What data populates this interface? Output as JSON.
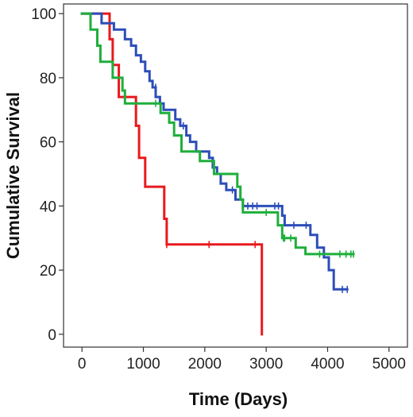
{
  "chart_data": {
    "type": "line",
    "subtype": "kaplan-meier-step",
    "title": "",
    "xlabel": "Time (Days)",
    "ylabel": "Cumulative Survival",
    "xlim": [
      -300,
      5300
    ],
    "ylim": [
      -4,
      103
    ],
    "xticks": [
      0,
      1000,
      2000,
      3000,
      4000,
      5000
    ],
    "yticks": [
      0,
      20,
      40,
      60,
      80,
      100
    ],
    "xtick_labels": [
      "0",
      "1000",
      "2000",
      "3000",
      "4000",
      "5000"
    ],
    "ytick_labels": [
      "0",
      "20",
      "40",
      "60",
      "80",
      "100"
    ],
    "grid": false,
    "legend": "none",
    "series": [
      {
        "color": "#e8191d",
        "points": [
          [
            0,
            100
          ],
          [
            450,
            100
          ],
          [
            450,
            92
          ],
          [
            500,
            92
          ],
          [
            500,
            84
          ],
          [
            600,
            84
          ],
          [
            600,
            74
          ],
          [
            880,
            74
          ],
          [
            880,
            65
          ],
          [
            930,
            65
          ],
          [
            930,
            55
          ],
          [
            1030,
            55
          ],
          [
            1030,
            46
          ],
          [
            1340,
            46
          ],
          [
            1340,
            36
          ],
          [
            1380,
            36
          ],
          [
            1380,
            28
          ],
          [
            2930,
            28
          ],
          [
            2930,
            0
          ]
        ],
        "censored": [
          [
            1380,
            28
          ],
          [
            2070,
            28
          ],
          [
            2820,
            28
          ]
        ]
      },
      {
        "color": "#2c4eb8",
        "points": [
          [
            0,
            100
          ],
          [
            320,
            100
          ],
          [
            320,
            97
          ],
          [
            520,
            97
          ],
          [
            520,
            95
          ],
          [
            700,
            95
          ],
          [
            700,
            92
          ],
          [
            800,
            92
          ],
          [
            800,
            90
          ],
          [
            880,
            90
          ],
          [
            880,
            87
          ],
          [
            960,
            87
          ],
          [
            960,
            85
          ],
          [
            1030,
            85
          ],
          [
            1030,
            82
          ],
          [
            1100,
            82
          ],
          [
            1100,
            79
          ],
          [
            1150,
            79
          ],
          [
            1150,
            77
          ],
          [
            1200,
            77
          ],
          [
            1200,
            74
          ],
          [
            1270,
            74
          ],
          [
            1270,
            72
          ],
          [
            1330,
            72
          ],
          [
            1330,
            70
          ],
          [
            1520,
            70
          ],
          [
            1520,
            67
          ],
          [
            1600,
            67
          ],
          [
            1600,
            65
          ],
          [
            1700,
            65
          ],
          [
            1700,
            62
          ],
          [
            1760,
            62
          ],
          [
            1760,
            60
          ],
          [
            1860,
            60
          ],
          [
            1860,
            57
          ],
          [
            2070,
            57
          ],
          [
            2070,
            55
          ],
          [
            2130,
            55
          ],
          [
            2130,
            52
          ],
          [
            2200,
            52
          ],
          [
            2200,
            50
          ],
          [
            2260,
            50
          ],
          [
            2260,
            47
          ],
          [
            2350,
            47
          ],
          [
            2350,
            45
          ],
          [
            2500,
            45
          ],
          [
            2500,
            42
          ],
          [
            2620,
            42
          ],
          [
            2620,
            40
          ],
          [
            3260,
            40
          ],
          [
            3260,
            37
          ],
          [
            3300,
            37
          ],
          [
            3300,
            34
          ],
          [
            3720,
            34
          ],
          [
            3720,
            31
          ],
          [
            3830,
            31
          ],
          [
            3830,
            27
          ],
          [
            3940,
            27
          ],
          [
            3940,
            24
          ],
          [
            4020,
            24
          ],
          [
            4020,
            20
          ],
          [
            4100,
            20
          ],
          [
            4100,
            14
          ],
          [
            4320,
            14
          ]
        ],
        "censored": [
          [
            1200,
            77
          ],
          [
            1650,
            65
          ],
          [
            2450,
            45
          ],
          [
            2700,
            40
          ],
          [
            2780,
            40
          ],
          [
            2850,
            40
          ],
          [
            3140,
            40
          ],
          [
            3200,
            40
          ],
          [
            3450,
            34
          ],
          [
            3650,
            34
          ],
          [
            4240,
            14
          ],
          [
            4320,
            14
          ]
        ]
      },
      {
        "color": "#1eaf3b",
        "points": [
          [
            0,
            100
          ],
          [
            140,
            100
          ],
          [
            140,
            95
          ],
          [
            250,
            95
          ],
          [
            250,
            90
          ],
          [
            300,
            90
          ],
          [
            300,
            85
          ],
          [
            500,
            85
          ],
          [
            500,
            80
          ],
          [
            660,
            80
          ],
          [
            660,
            76
          ],
          [
            700,
            76
          ],
          [
            700,
            72
          ],
          [
            1280,
            72
          ],
          [
            1280,
            69
          ],
          [
            1420,
            69
          ],
          [
            1420,
            66
          ],
          [
            1500,
            66
          ],
          [
            1500,
            62
          ],
          [
            1620,
            62
          ],
          [
            1620,
            57
          ],
          [
            1920,
            57
          ],
          [
            1920,
            54
          ],
          [
            2150,
            54
          ],
          [
            2150,
            50
          ],
          [
            2530,
            50
          ],
          [
            2530,
            46
          ],
          [
            2580,
            46
          ],
          [
            2580,
            42
          ],
          [
            2620,
            42
          ],
          [
            2620,
            38
          ],
          [
            3190,
            38
          ],
          [
            3190,
            34
          ],
          [
            3260,
            34
          ],
          [
            3260,
            30
          ],
          [
            3480,
            30
          ],
          [
            3480,
            27
          ],
          [
            3640,
            27
          ],
          [
            3640,
            25
          ],
          [
            4420,
            25
          ]
        ],
        "censored": [
          [
            1200,
            72
          ],
          [
            3000,
            38
          ],
          [
            3280,
            30
          ],
          [
            3300,
            30
          ],
          [
            3400,
            30
          ],
          [
            3870,
            25
          ],
          [
            4200,
            25
          ],
          [
            4300,
            25
          ],
          [
            4380,
            25
          ],
          [
            4420,
            25
          ]
        ]
      }
    ]
  }
}
